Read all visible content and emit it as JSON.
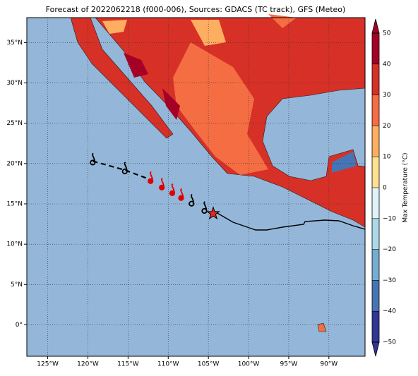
{
  "map": {
    "title": "Forecast of 2022062218 (f000-006), Sources: GDACS (TC track), GFS (Meteo)",
    "xlim": [
      -127.6,
      -85.5
    ],
    "ylim": [
      -3.9,
      38.1
    ],
    "xticks": [
      {
        "value": -125,
        "label": "125°W"
      },
      {
        "value": -120,
        "label": "120°W"
      },
      {
        "value": -115,
        "label": "115°W"
      },
      {
        "value": -110,
        "label": "110°W"
      },
      {
        "value": -105,
        "label": "105°W"
      },
      {
        "value": -100,
        "label": "100°W"
      },
      {
        "value": -95,
        "label": "95°W"
      },
      {
        "value": -90,
        "label": "90°W"
      }
    ],
    "yticks": [
      {
        "value": 0,
        "label": "0°"
      },
      {
        "value": 5,
        "label": "5°N"
      },
      {
        "value": 10,
        "label": "10°N"
      },
      {
        "value": 15,
        "label": "15°N"
      },
      {
        "value": 20,
        "label": "20°N"
      },
      {
        "value": 25,
        "label": "25°N"
      },
      {
        "value": 30,
        "label": "30°N"
      },
      {
        "value": 35,
        "label": "35°N"
      }
    ],
    "grid": true,
    "track": {
      "lon": [
        -119.4,
        -115.4,
        -112.2,
        -110.8,
        -109.5,
        -108.4,
        -107.1,
        -105.5
      ],
      "lat": [
        20.3,
        19.2,
        18.0,
        17.2,
        16.5,
        15.9,
        15.2,
        14.3
      ],
      "colors": [
        "#000000",
        "#000000",
        "#e00000",
        "#e00000",
        "#e00000",
        "#e00000",
        "#000000",
        "#000000"
      ]
    },
    "current": {
      "lon": -104.4,
      "lat": 13.8
    },
    "colorbar": {
      "label": "Max Temperature (°C)",
      "lim": [
        -50,
        50
      ],
      "ticks": [
        {
          "value": -50,
          "label": "−50"
        },
        {
          "value": -40,
          "label": "−40"
        },
        {
          "value": -30,
          "label": "−30"
        },
        {
          "value": -20,
          "label": "−20"
        },
        {
          "value": -10,
          "label": "−10"
        },
        0,
        10,
        20,
        30,
        40,
        50
      ],
      "colors": [
        "#313695",
        "#4575b4",
        "#74add1",
        "#abd9e9",
        "#e0f3f8",
        "#fee090",
        "#fdae61",
        "#f46d43",
        "#d73027",
        "#a50026"
      ]
    }
  }
}
